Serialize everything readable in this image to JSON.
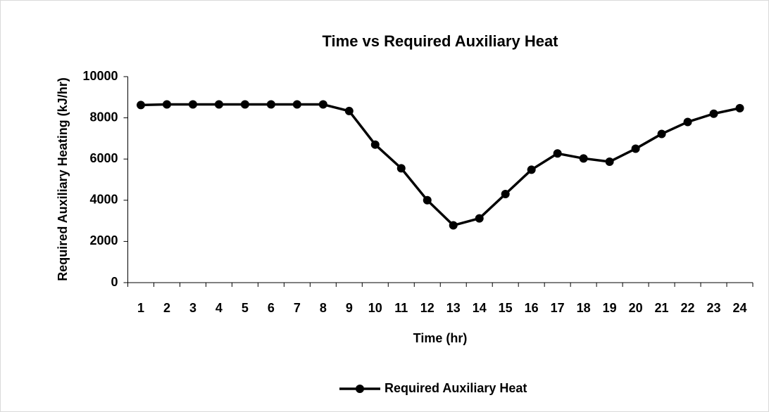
{
  "chart_data": {
    "type": "line",
    "title": "Time vs Required Auxiliary Heat",
    "x_label": "Time (hr)",
    "y_label": "Required Auxiliary Heating (kJ/hr)",
    "categories": [
      "1",
      "2",
      "3",
      "4",
      "5",
      "6",
      "7",
      "8",
      "9",
      "10",
      "11",
      "12",
      "13",
      "14",
      "15",
      "16",
      "17",
      "18",
      "19",
      "20",
      "21",
      "22",
      "23",
      "24"
    ],
    "series": [
      {
        "name": "Required Auxiliary Heat",
        "color": "#000000",
        "values": [
          8620,
          8650,
          8650,
          8650,
          8650,
          8650,
          8650,
          8650,
          8330,
          6700,
          5550,
          4000,
          2780,
          3120,
          4300,
          5480,
          6270,
          6030,
          5870,
          6500,
          7220,
          7800,
          8200,
          8470
        ]
      }
    ],
    "ylim": [
      0,
      10000
    ],
    "yticks": [
      0,
      2000,
      4000,
      6000,
      8000,
      10000
    ],
    "legend": "bottom"
  }
}
